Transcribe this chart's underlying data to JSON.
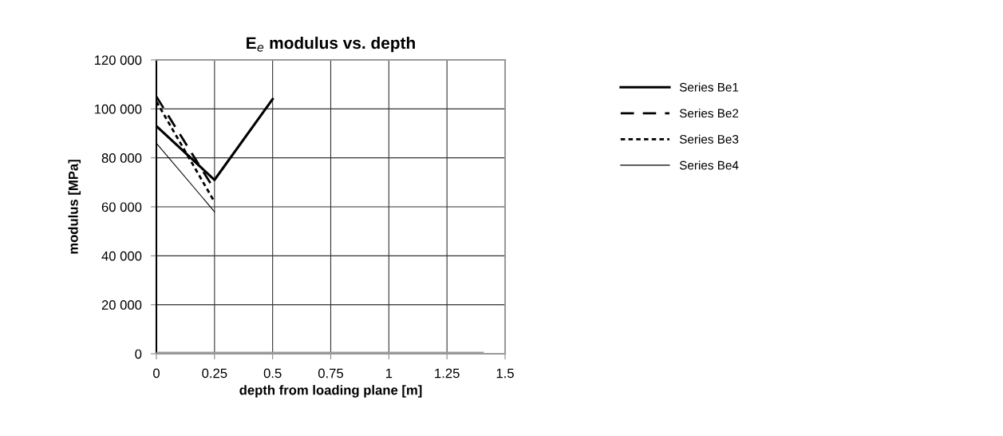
{
  "chart_data": {
    "type": "line",
    "title": "E$_{e}$ modulus vs. depth",
    "xlabel": "depth from loading plane [m]",
    "ylabel": "modulus [MPa]",
    "x": [
      0,
      0.25,
      0.5
    ],
    "series": [
      {
        "name": "Series Be1",
        "color": "#000000",
        "values": [
          93000,
          71000,
          104000
        ],
        "line_style": "solid"
      },
      {
        "name": "Series Be2",
        "color": "#000000",
        "values": [
          105000,
          67000,
          null
        ],
        "line_style": "dashed"
      },
      {
        "name": "Series Be3",
        "color": "#000000",
        "values": [
          103000,
          62000,
          null
        ],
        "line_style": "dotted"
      },
      {
        "name": "Series Be4",
        "color": "#000000",
        "values": [
          86000,
          58000,
          null
        ],
        "line_style": "solid"
      },
      {
        "color": "#999999",
        "x": [
          0,
          1.4
        ],
        "values": [
          0,
          0
        ],
        "line_style": "solid"
      }
    ],
    "xlim": [
      0,
      1.5
    ],
    "xticks": [
      0,
      0.25,
      0.5,
      0.75,
      1,
      1.25,
      1.5
    ],
    "ylim": [
      0,
      120000
    ],
    "yticks": [
      0,
      {
        "value": 20000,
        "label": "20 000"
      },
      {
        "value": 40000,
        "label": "40 000"
      },
      {
        "value": 60000,
        "label": "60 000"
      },
      {
        "value": 80000,
        "label": "80 000"
      },
      {
        "value": 100000,
        "label": "100 000"
      },
      {
        "value": 120000,
        "label": "120 000"
      }
    ],
    "grid": true,
    "legend": "right",
    "marker": "none"
  }
}
